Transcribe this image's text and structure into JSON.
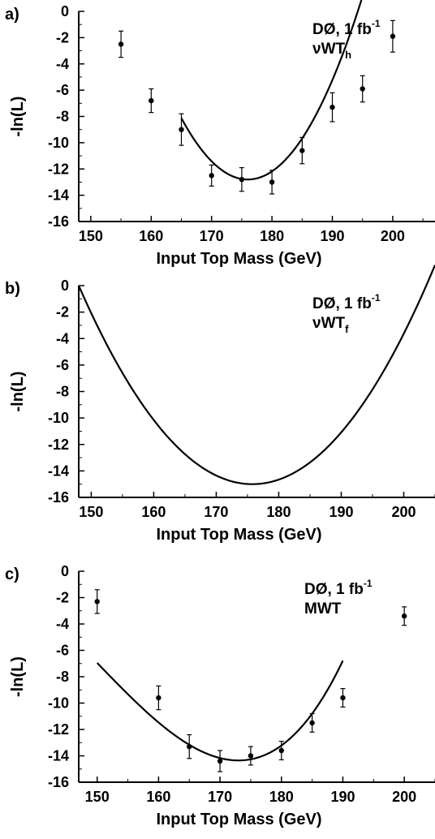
{
  "chart_data": [
    {
      "panel_label": "a)",
      "type": "scatter",
      "xlabel": "Input Top Mass (GeV)",
      "ylabel": "-ln(L)",
      "xlim": [
        148,
        207
      ],
      "ylim": [
        -16,
        0
      ],
      "xticks": [
        150,
        160,
        170,
        180,
        190,
        200
      ],
      "yticks": [
        0,
        -2,
        -4,
        -6,
        -8,
        -10,
        -12,
        -14,
        -16
      ],
      "annotation": {
        "line1": "DØ, 1 fb",
        "line1_sup": "-1",
        "line2": "νWT",
        "line2_sub": "h"
      },
      "points": [
        {
          "x": 155,
          "y": -2.5,
          "err": 1.0
        },
        {
          "x": 160,
          "y": -6.8,
          "err": 0.9
        },
        {
          "x": 165,
          "y": -9.0,
          "err": 1.2
        },
        {
          "x": 170,
          "y": -12.5,
          "err": 0.8
        },
        {
          "x": 175,
          "y": -12.8,
          "err": 0.9
        },
        {
          "x": 180,
          "y": -13.0,
          "err": 0.9
        },
        {
          "x": 185,
          "y": -10.6,
          "err": 1.0
        },
        {
          "x": 190,
          "y": -7.3,
          "err": 1.1
        },
        {
          "x": 195,
          "y": -5.9,
          "err": 1.0
        },
        {
          "x": 200,
          "y": -1.9,
          "err": 1.2
        }
      ],
      "fit": {
        "xmin": 165,
        "xmax": 195,
        "x0": 176.0,
        "ymin": -12.8,
        "a": 0.0386,
        "b": 0.0
      },
      "grid": false,
      "legend": "none"
    },
    {
      "panel_label": "b)",
      "type": "line",
      "xlabel": "Input Top Mass (GeV)",
      "ylabel": "-ln(L)",
      "xlim": [
        148,
        205
      ],
      "ylim": [
        -16,
        0
      ],
      "xticks": [
        150,
        160,
        170,
        180,
        190,
        200
      ],
      "yticks": [
        0,
        -2,
        -4,
        -6,
        -8,
        -10,
        -12,
        -14,
        -16
      ],
      "annotation": {
        "line1": "DØ, 1 fb",
        "line1_sup": "-1",
        "line2": "νWT",
        "line2_sub": "f"
      },
      "points": [],
      "fit": {
        "xmin": 148,
        "xmax": 205,
        "x0": 175.8,
        "ymin": -15.0,
        "a": 0.01941,
        "b": 0.0
      },
      "grid": false,
      "legend": "none"
    },
    {
      "panel_label": "c)",
      "type": "scatter",
      "xlabel": "Input Top Mass (GeV)",
      "ylabel": "-ln(L)",
      "xlim": [
        147,
        205
      ],
      "ylim": [
        -16,
        0
      ],
      "xticks": [
        150,
        160,
        170,
        180,
        190,
        200
      ],
      "yticks": [
        0,
        -2,
        -4,
        -6,
        -8,
        -10,
        -12,
        -14,
        -16
      ],
      "annotation": {
        "line1": "DØ, 1 fb",
        "line1_sup": "-1",
        "line2": "MWT",
        "line2_sub": ""
      },
      "points": [
        {
          "x": 150,
          "y": -2.3,
          "err": 0.9
        },
        {
          "x": 160,
          "y": -9.6,
          "err": 0.9
        },
        {
          "x": 165,
          "y": -13.3,
          "err": 0.9
        },
        {
          "x": 170,
          "y": -14.4,
          "err": 0.8
        },
        {
          "x": 175,
          "y": -14.0,
          "err": 0.7
        },
        {
          "x": 180,
          "y": -13.6,
          "err": 0.7
        },
        {
          "x": 185,
          "y": -11.5,
          "err": 0.7
        },
        {
          "x": 190,
          "y": -9.6,
          "err": 0.7
        },
        {
          "x": 200,
          "y": -3.4,
          "err": 0.7
        }
      ],
      "fit": {
        "xmin": 150,
        "xmax": 190,
        "x0": 173.0,
        "ymin": -14.35,
        "a": 0.021,
        "b": 0.000305
      },
      "grid": false,
      "legend": "none"
    }
  ]
}
